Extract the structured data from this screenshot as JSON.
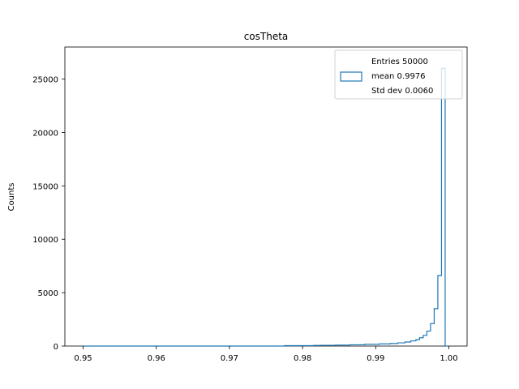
{
  "chart_data": {
    "type": "histogram",
    "title": "cosTheta",
    "xlabel": "",
    "ylabel": "Counts",
    "xlim": [
      0.9475,
      1.0025
    ],
    "ylim": [
      0,
      28000
    ],
    "xticks": [
      0.95,
      0.96,
      0.97,
      0.98,
      0.99,
      1.0
    ],
    "xtick_labels": [
      "0.95",
      "0.96",
      "0.97",
      "0.98",
      "0.99",
      "1.00"
    ],
    "yticks": [
      0,
      5000,
      10000,
      15000,
      20000,
      25000
    ],
    "ytick_labels": [
      "0",
      "5000",
      "10000",
      "15000",
      "20000",
      "25000"
    ],
    "grid": false,
    "histtype": "step",
    "color": "#1f77b4",
    "bin_edges": [
      0.95,
      0.9555,
      0.961,
      0.9665,
      0.972,
      0.9775,
      0.9815,
      0.9825,
      0.9845,
      0.9865,
      0.9885,
      0.9905,
      0.992,
      0.993,
      0.994,
      0.9948,
      0.9955,
      0.996,
      0.9965,
      0.997,
      0.9975,
      0.998,
      0.9985,
      0.999,
      0.9995,
      1.0
    ],
    "counts": [
      0,
      0,
      0,
      0,
      0,
      40,
      60,
      70,
      90,
      120,
      160,
      200,
      240,
      300,
      380,
      480,
      600,
      780,
      1000,
      1400,
      2100,
      3500,
      6600,
      26000,
      0
    ],
    "legend": {
      "placement": "upper-right",
      "lines": [
        "Entries 50000",
        "mean 0.9976",
        "Std dev 0.0060"
      ]
    }
  }
}
